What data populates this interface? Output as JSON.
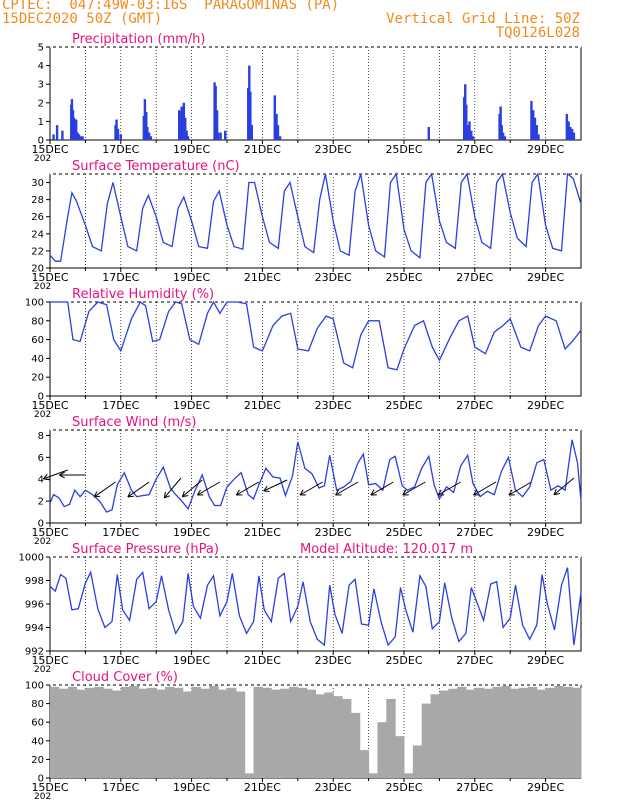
{
  "header": {
    "line1": "CPTEC:  047:49W-03:16S  PARAGOMINAS (PA)",
    "line2": "15DEC2020 50Z (GMT)",
    "grid_note": "Vertical Grid Line: 50Z",
    "code": "TQ0126L028",
    "color": "#f28a1e"
  },
  "colors": {
    "title": "#e8117f",
    "series": "#2b3fe0",
    "cloud": "#a8a8a8",
    "frame": "#000000"
  },
  "x_axis": {
    "ticks": [
      "15DEC",
      "17DEC",
      "19DEC",
      "21DEC",
      "23DEC",
      "25DEC",
      "27DEC",
      "29DEC"
    ],
    "start_label": "202"
  },
  "chart_data": [
    {
      "type": "bar",
      "title": "Precipitation (mm/h)",
      "ylim": [
        0,
        5
      ],
      "yticks": [
        "0",
        "1",
        "2",
        "3",
        "4",
        "5"
      ],
      "x": [
        15.1,
        15.2,
        15.35,
        15.6,
        15.62,
        15.65,
        15.68,
        15.71,
        15.74,
        15.78,
        15.82,
        15.86,
        15.92,
        16.85,
        16.88,
        16.92,
        17.0,
        17.65,
        17.68,
        17.72,
        17.75,
        17.8,
        17.85,
        18.65,
        18.68,
        18.72,
        18.75,
        18.78,
        18.82,
        18.86,
        18.9,
        19.65,
        19.68,
        19.72,
        19.75,
        19.82,
        19.95,
        20.6,
        20.63,
        20.66,
        20.7,
        21.35,
        21.4,
        21.44,
        21.5,
        25.7,
        26.7,
        26.73,
        26.76,
        26.8,
        26.85,
        26.9,
        26.95,
        27.7,
        27.73,
        27.76,
        27.8,
        27.85,
        28.6,
        28.65,
        28.7,
        28.75,
        28.8,
        29.6,
        29.65,
        29.7,
        29.75,
        29.8
      ],
      "values": [
        0.3,
        0.8,
        0.5,
        1.9,
        2.2,
        1.6,
        1.2,
        0.8,
        1.1,
        0.4,
        0.3,
        0.2,
        0.2,
        0.8,
        1.1,
        0.6,
        0.3,
        1.3,
        2.2,
        1.5,
        0.7,
        0.4,
        0.2,
        1.6,
        1.4,
        1.8,
        1.6,
        2.0,
        1.2,
        0.5,
        0.2,
        3.1,
        2.9,
        1.6,
        0.4,
        0.4,
        0.5,
        2.8,
        4.0,
        2.6,
        0.8,
        2.4,
        1.4,
        0.8,
        0.2,
        0.7,
        2.3,
        3.0,
        1.9,
        0.8,
        1.0,
        0.5,
        0.2,
        1.4,
        1.8,
        0.8,
        0.4,
        0.2,
        2.1,
        1.6,
        1.2,
        0.8,
        0.3,
        1.4,
        1.0,
        0.7,
        0.6,
        0.4
      ]
    },
    {
      "type": "line",
      "title": "Surface Temperature (nC)",
      "ylim": [
        20,
        31
      ],
      "yticks": [
        "20",
        "22",
        "24",
        "26",
        "28",
        "30"
      ],
      "series": [
        {
          "x": [
            15.0,
            15.15,
            15.3,
            15.5,
            15.62,
            15.75,
            16.0,
            16.2,
            16.45,
            16.62,
            16.78,
            17.0,
            17.2,
            17.45,
            17.62,
            17.78,
            18.0,
            18.2,
            18.45,
            18.62,
            18.78,
            19.0,
            19.2,
            19.45,
            19.62,
            19.78,
            20.0,
            20.2,
            20.45,
            20.62,
            20.78,
            21.0,
            21.2,
            21.45,
            21.62,
            21.78,
            22.0,
            22.2,
            22.45,
            22.62,
            22.78,
            23.0,
            23.2,
            23.45,
            23.62,
            23.78,
            24.0,
            24.2,
            24.45,
            24.62,
            24.78,
            25.0,
            25.2,
            25.45,
            25.62,
            25.78,
            26.0,
            26.2,
            26.45,
            26.62,
            26.78,
            27.0,
            27.2,
            27.45,
            27.62,
            27.78,
            28.0,
            28.2,
            28.45,
            28.62,
            28.78,
            29.0,
            29.2,
            29.45,
            29.62,
            29.78,
            30.0
          ],
          "y": [
            21.5,
            20.8,
            20.8,
            26.0,
            28.8,
            27.8,
            25.0,
            22.5,
            22.0,
            27.5,
            30.0,
            26.0,
            22.5,
            22.0,
            27.0,
            28.5,
            26.0,
            23.0,
            22.5,
            27.0,
            28.3,
            25.5,
            22.5,
            22.3,
            27.8,
            29.0,
            25.0,
            22.5,
            22.2,
            30.0,
            30.0,
            26.0,
            23.0,
            22.3,
            29.0,
            30.0,
            26.0,
            22.5,
            21.8,
            28.0,
            31.0,
            25.5,
            22.0,
            21.5,
            29.0,
            31.0,
            25.0,
            22.0,
            21.3,
            30.0,
            31.0,
            24.5,
            22.0,
            21.2,
            30.0,
            31.0,
            25.5,
            23.0,
            22.3,
            30.0,
            31.0,
            26.0,
            23.0,
            22.3,
            30.0,
            31.0,
            26.5,
            23.5,
            22.5,
            30.0,
            31.0,
            25.0,
            22.3,
            22.0,
            31.0,
            30.5,
            27.5
          ]
        }
      ]
    },
    {
      "type": "line",
      "title": "Relative Humidity (%)",
      "ylim": [
        0,
        100
      ],
      "yticks": [
        "0",
        "20",
        "40",
        "60",
        "80",
        "100"
      ],
      "series": [
        {
          "x": [
            15.0,
            15.25,
            15.5,
            15.65,
            15.85,
            16.1,
            16.35,
            16.6,
            16.8,
            17.0,
            17.3,
            17.55,
            17.7,
            17.9,
            18.1,
            18.35,
            18.55,
            18.72,
            18.95,
            19.2,
            19.45,
            19.62,
            19.8,
            20.0,
            20.3,
            20.55,
            20.75,
            21.0,
            21.3,
            21.55,
            21.8,
            22.0,
            22.3,
            22.55,
            22.8,
            23.0,
            23.3,
            23.55,
            23.78,
            24.0,
            24.3,
            24.55,
            24.8,
            25.0,
            25.3,
            25.55,
            25.8,
            26.0,
            26.3,
            26.55,
            26.8,
            27.0,
            27.3,
            27.55,
            27.8,
            28.0,
            28.3,
            28.55,
            28.8,
            29.0,
            29.3,
            29.55,
            29.8,
            30.0
          ],
          "y": [
            100,
            100,
            100,
            60,
            58,
            90,
            100,
            97,
            60,
            48,
            82,
            100,
            96,
            58,
            60,
            90,
            100,
            98,
            60,
            55,
            88,
            100,
            88,
            100,
            100,
            98,
            52,
            48,
            75,
            85,
            88,
            50,
            48,
            72,
            85,
            82,
            35,
            30,
            65,
            80,
            80,
            30,
            28,
            50,
            75,
            80,
            52,
            38,
            62,
            80,
            85,
            52,
            45,
            68,
            75,
            82,
            52,
            48,
            75,
            85,
            80,
            50,
            60,
            70
          ]
        }
      ]
    },
    {
      "type": "line",
      "title": "Surface Wind (m/s)",
      "ylim": [
        0,
        8.5
      ],
      "yticks": [
        "0",
        "2",
        "4",
        "6",
        "8"
      ],
      "series": [
        {
          "x": [
            15.0,
            15.1,
            15.25,
            15.4,
            15.55,
            15.7,
            15.85,
            16.0,
            16.2,
            16.4,
            16.6,
            16.75,
            16.9,
            17.1,
            17.3,
            17.45,
            17.62,
            17.8,
            18.0,
            18.2,
            18.4,
            18.55,
            18.72,
            18.9,
            19.1,
            19.3,
            19.5,
            19.65,
            19.82,
            20.0,
            20.2,
            20.4,
            20.6,
            20.75,
            20.9,
            21.1,
            21.3,
            21.5,
            21.65,
            21.85,
            22.0,
            22.2,
            22.4,
            22.6,
            22.75,
            22.9,
            23.1,
            23.3,
            23.5,
            23.7,
            23.85,
            24.0,
            24.2,
            24.4,
            24.6,
            24.75,
            24.95,
            25.1,
            25.3,
            25.5,
            25.7,
            25.85,
            26.0,
            26.2,
            26.4,
            26.6,
            26.8,
            26.95,
            27.15,
            27.35,
            27.55,
            27.75,
            27.95,
            28.15,
            28.35,
            28.55,
            28.75,
            28.95,
            29.15,
            29.35,
            29.55,
            29.75,
            29.9,
            30.0
          ],
          "y": [
            1.8,
            2.6,
            2.3,
            1.5,
            1.7,
            3.0,
            2.4,
            3.0,
            2.6,
            2.0,
            1.0,
            1.2,
            3.5,
            4.6,
            3.0,
            2.4,
            2.5,
            2.6,
            4.0,
            5.1,
            3.2,
            2.6,
            2.0,
            1.3,
            3.0,
            4.4,
            2.4,
            1.6,
            1.6,
            3.3,
            4.0,
            4.6,
            2.6,
            2.2,
            3.5,
            5.0,
            4.2,
            4.1,
            2.5,
            4.3,
            7.4,
            5.0,
            4.5,
            3.2,
            3.4,
            6.2,
            3.0,
            3.3,
            3.8,
            5.5,
            6.3,
            3.5,
            3.6,
            3.0,
            5.8,
            6.1,
            3.4,
            3.0,
            3.3,
            5.0,
            6.1,
            3.5,
            2.2,
            3.3,
            2.8,
            5.2,
            6.2,
            3.6,
            2.4,
            2.9,
            2.6,
            4.7,
            6.0,
            3.0,
            2.4,
            3.3,
            5.5,
            5.8,
            3.0,
            3.4,
            3.0,
            7.6,
            5.5,
            2.0
          ]
        }
      ]
    },
    {
      "type": "line",
      "title": "Surface Pressure (hPa)",
      "annotation": "Model Altitude: 120.017 m",
      "ylim": [
        992,
        1000
      ],
      "yticks": [
        "992",
        "994",
        "996",
        "998",
        "1000"
      ],
      "series": [
        {
          "x": [
            15.0,
            15.15,
            15.3,
            15.45,
            15.62,
            15.8,
            16.0,
            16.15,
            16.35,
            16.55,
            16.75,
            16.9,
            17.05,
            17.25,
            17.45,
            17.62,
            17.8,
            18.0,
            18.15,
            18.35,
            18.55,
            18.75,
            18.9,
            19.05,
            19.25,
            19.45,
            19.62,
            19.8,
            20.0,
            20.15,
            20.35,
            20.55,
            20.75,
            20.9,
            21.05,
            21.25,
            21.45,
            21.62,
            21.8,
            22.0,
            22.15,
            22.35,
            22.55,
            22.75,
            22.9,
            23.05,
            23.25,
            23.45,
            23.62,
            23.8,
            24.0,
            24.15,
            24.35,
            24.55,
            24.75,
            24.9,
            25.05,
            25.25,
            25.45,
            25.62,
            25.8,
            26.0,
            26.15,
            26.35,
            26.55,
            26.75,
            26.9,
            27.05,
            27.25,
            27.45,
            27.62,
            27.8,
            28.0,
            28.15,
            28.35,
            28.55,
            28.75,
            28.9,
            29.05,
            29.25,
            29.45,
            29.62,
            29.8,
            30.0
          ],
          "y": [
            997.5,
            997.1,
            998.5,
            998.2,
            995.5,
            995.6,
            997.8,
            998.7,
            995.6,
            994.0,
            994.5,
            998.5,
            995.5,
            994.6,
            998.1,
            998.7,
            995.6,
            996.2,
            998.4,
            995.5,
            993.5,
            994.5,
            998.6,
            995.8,
            994.8,
            997.6,
            998.4,
            995.0,
            996.2,
            998.6,
            995.0,
            993.5,
            994.5,
            998.4,
            995.5,
            994.5,
            998.2,
            998.6,
            994.5,
            995.8,
            997.9,
            994.5,
            993.0,
            992.5,
            997.6,
            995.1,
            993.5,
            997.6,
            998.1,
            994.3,
            994.2,
            997.3,
            994.5,
            992.5,
            993.2,
            997.4,
            995.5,
            993.6,
            998.4,
            997.5,
            993.9,
            994.5,
            997.8,
            994.8,
            992.8,
            993.5,
            997.4,
            996.2,
            994.6,
            997.7,
            997.9,
            994.0,
            994.8,
            997.6,
            994.2,
            993.0,
            994.2,
            998.5,
            996.0,
            993.8,
            997.6,
            999.1,
            992.5,
            997.0
          ]
        }
      ]
    },
    {
      "type": "bar",
      "title": "Cloud Cover (%)",
      "ylim": [
        0,
        100
      ],
      "yticks": [
        "0",
        "20",
        "40",
        "60",
        "80",
        "100"
      ],
      "x": [
        15.0,
        15.25,
        15.5,
        15.75,
        16.0,
        16.25,
        16.5,
        16.75,
        17.0,
        17.25,
        17.5,
        17.75,
        18.0,
        18.25,
        18.5,
        18.75,
        19.0,
        19.25,
        19.5,
        19.75,
        20.0,
        20.25,
        20.5,
        20.75,
        21.0,
        21.25,
        21.5,
        21.75,
        22.0,
        22.25,
        22.5,
        22.75,
        23.0,
        23.25,
        23.5,
        23.75,
        24.0,
        24.25,
        24.5,
        24.75,
        25.0,
        25.25,
        25.5,
        25.75,
        26.0,
        26.25,
        26.5,
        26.75,
        27.0,
        27.25,
        27.5,
        27.75,
        28.0,
        28.25,
        28.5,
        28.75,
        29.0,
        29.25,
        29.5,
        29.75
      ],
      "values": [
        98,
        96,
        98,
        95,
        97,
        98,
        96,
        94,
        98,
        99,
        96,
        97,
        95,
        98,
        97,
        93,
        98,
        96,
        99,
        95,
        97,
        93,
        5,
        98,
        97,
        95,
        96,
        98,
        97,
        95,
        90,
        92,
        88,
        85,
        70,
        30,
        5,
        60,
        85,
        45,
        5,
        35,
        80,
        90,
        94,
        96,
        98,
        95,
        97,
        96,
        98,
        99,
        96,
        97,
        98,
        95,
        97,
        99,
        98,
        97
      ]
    }
  ]
}
